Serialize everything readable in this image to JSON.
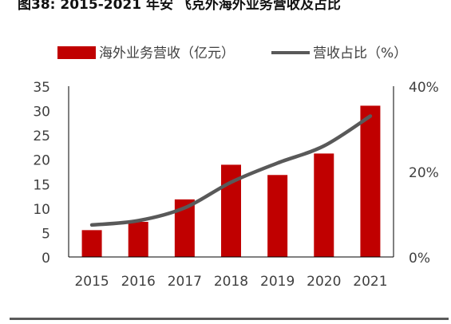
{
  "header": {
    "title": "图38: 2015-2021 年安 飞克外海外业务营收及占比"
  },
  "colors": {
    "bar": "#c00000",
    "line": "#595959",
    "axis": "#000000",
    "text": "#404040"
  },
  "chart_data": {
    "type": "bar",
    "categories": [
      "2015",
      "2016",
      "2017",
      "2018",
      "2019",
      "2020",
      "2021"
    ],
    "series": [
      {
        "name": "海外业务营收（亿元）",
        "type": "bar",
        "axis": "left",
        "values": [
          5.5,
          7.2,
          11.8,
          18.9,
          16.8,
          21.2,
          31.0
        ]
      },
      {
        "name": "营收占比（%）",
        "type": "line",
        "axis": "right",
        "values": [
          7.5,
          8.5,
          11.5,
          17.5,
          22.0,
          26.0,
          33.0
        ]
      }
    ],
    "left_axis": {
      "min": 0,
      "max": 35,
      "ticks": [
        "0",
        "5",
        "10",
        "15",
        "20",
        "25",
        "30",
        "35"
      ]
    },
    "right_axis": {
      "min": 0,
      "max": 40,
      "ticks": [
        "0%",
        "20%",
        "40%"
      ]
    },
    "legend_placement": "top",
    "grid": false
  }
}
